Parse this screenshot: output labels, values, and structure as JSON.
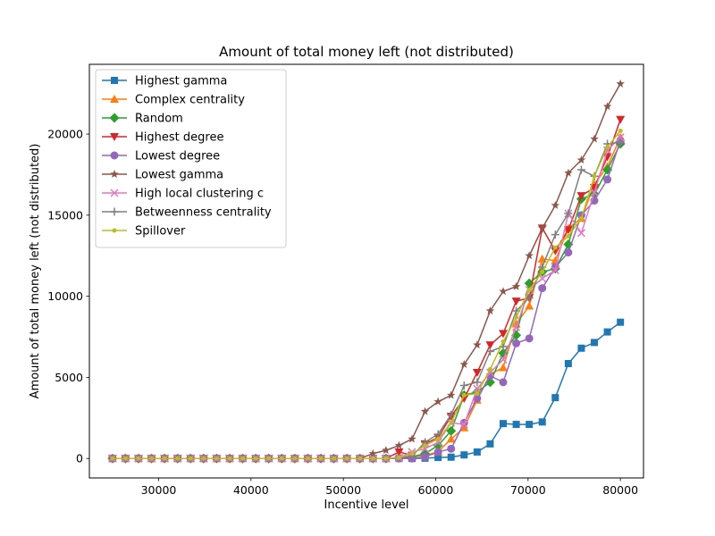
{
  "chart_data": {
    "type": "line",
    "title": "Amount of total money left (not distributed)",
    "xlabel": "Incentive level",
    "ylabel": "Amount of total money left (not distributed)",
    "xlim": [
      22500,
      82500
    ],
    "ylim": [
      -1200,
      24300
    ],
    "xticks": [
      30000,
      40000,
      50000,
      60000,
      70000,
      80000
    ],
    "yticks": [
      0,
      5000,
      10000,
      15000,
      20000
    ],
    "grid": false,
    "legend_position": "top-left",
    "x": [
      25000,
      26410,
      27821,
      29231,
      30641,
      32051,
      33462,
      34872,
      36282,
      37692,
      39103,
      40513,
      41923,
      43333,
      44744,
      46154,
      47564,
      48974,
      50385,
      51795,
      53205,
      54615,
      56026,
      57436,
      58846,
      60256,
      61667,
      63077,
      64487,
      65897,
      67308,
      68718,
      70128,
      71538,
      72949,
      74359,
      75769,
      77179,
      78590,
      80000
    ],
    "series": [
      {
        "name": "Highest gamma",
        "color": "#1f77b4",
        "marker": "square",
        "values": [
          0,
          0,
          0,
          0,
          0,
          0,
          0,
          0,
          0,
          0,
          0,
          0,
          0,
          0,
          0,
          0,
          0,
          0,
          0,
          0,
          0,
          0,
          0,
          0,
          20,
          60,
          80,
          220,
          400,
          900,
          2150,
          2100,
          2100,
          2250,
          3750,
          5850,
          6800,
          7150,
          7800,
          8400
        ]
      },
      {
        "name": "Complex centrality",
        "color": "#ff7f0e",
        "marker": "triangle-up",
        "values": [
          0,
          0,
          0,
          0,
          0,
          0,
          0,
          0,
          0,
          0,
          0,
          0,
          0,
          0,
          0,
          0,
          0,
          0,
          0,
          0,
          0,
          0,
          50,
          100,
          200,
          400,
          1200,
          1900,
          3600,
          5200,
          5600,
          8300,
          9400,
          12300,
          12200,
          14200,
          14800,
          16900,
          18000,
          19800
        ]
      },
      {
        "name": "Random",
        "color": "#2ca02c",
        "marker": "diamond",
        "values": [
          0,
          0,
          0,
          0,
          0,
          0,
          0,
          0,
          0,
          0,
          0,
          0,
          0,
          0,
          0,
          0,
          0,
          0,
          0,
          0,
          0,
          0,
          50,
          100,
          300,
          800,
          1700,
          3900,
          4100,
          4700,
          6500,
          7600,
          10800,
          11500,
          11700,
          13200,
          16000,
          16300,
          17800,
          19400
        ]
      },
      {
        "name": "Highest degree",
        "color": "#d62728",
        "marker": "triangle-down",
        "values": [
          0,
          0,
          0,
          0,
          0,
          0,
          0,
          0,
          0,
          0,
          0,
          0,
          0,
          0,
          0,
          0,
          0,
          0,
          0,
          0,
          0,
          0,
          400,
          200,
          900,
          1300,
          2600,
          3700,
          5300,
          7000,
          7700,
          9700,
          9900,
          14200,
          12800,
          14100,
          16200,
          16700,
          18600,
          20900
        ]
      },
      {
        "name": "Lowest degree",
        "color": "#9467bd",
        "marker": "circle",
        "values": [
          0,
          0,
          0,
          0,
          0,
          0,
          0,
          0,
          0,
          0,
          0,
          0,
          0,
          0,
          0,
          0,
          0,
          0,
          0,
          0,
          0,
          0,
          0,
          0,
          100,
          400,
          600,
          2200,
          3700,
          5100,
          4700,
          7100,
          7400,
          10500,
          11800,
          12700,
          15000,
          15900,
          17200,
          19600
        ]
      },
      {
        "name": "Lowest gamma",
        "color": "#8c564b",
        "marker": "star",
        "values": [
          0,
          0,
          0,
          0,
          0,
          0,
          0,
          0,
          0,
          0,
          0,
          0,
          0,
          0,
          0,
          0,
          0,
          0,
          0,
          0,
          300,
          500,
          800,
          1200,
          2900,
          3500,
          3900,
          5800,
          7000,
          9100,
          10300,
          10600,
          12500,
          14200,
          15600,
          17600,
          18400,
          19700,
          21700,
          23100
        ]
      },
      {
        "name": "High local clustering c",
        "color": "#e377c2",
        "marker": "x",
        "values": [
          0,
          0,
          0,
          0,
          0,
          0,
          0,
          0,
          0,
          0,
          0,
          0,
          0,
          0,
          0,
          0,
          0,
          0,
          0,
          0,
          0,
          0,
          50,
          400,
          600,
          1000,
          2200,
          2100,
          4300,
          5300,
          6100,
          8100,
          10400,
          11100,
          11600,
          15100,
          13900,
          16400,
          19000,
          19800
        ]
      },
      {
        "name": "Betweenness centrality",
        "color": "#7f7f7f",
        "marker": "plus",
        "values": [
          0,
          0,
          0,
          0,
          0,
          0,
          0,
          0,
          0,
          0,
          0,
          0,
          0,
          0,
          0,
          0,
          0,
          0,
          0,
          0,
          0,
          0,
          50,
          150,
          1000,
          1500,
          2700,
          4500,
          4700,
          6600,
          6900,
          9100,
          9900,
          11800,
          13800,
          15100,
          17800,
          17400,
          19400,
          19500
        ]
      },
      {
        "name": "Spillover",
        "color": "#bcbd22",
        "marker": "point",
        "values": [
          0,
          0,
          0,
          0,
          0,
          0,
          0,
          0,
          0,
          0,
          0,
          0,
          0,
          0,
          0,
          0,
          0,
          0,
          0,
          0,
          0,
          0,
          50,
          300,
          800,
          1200,
          2200,
          3900,
          4000,
          5500,
          7200,
          8700,
          10400,
          11500,
          13000,
          13700,
          14800,
          17400,
          19200,
          20200
        ]
      }
    ]
  }
}
